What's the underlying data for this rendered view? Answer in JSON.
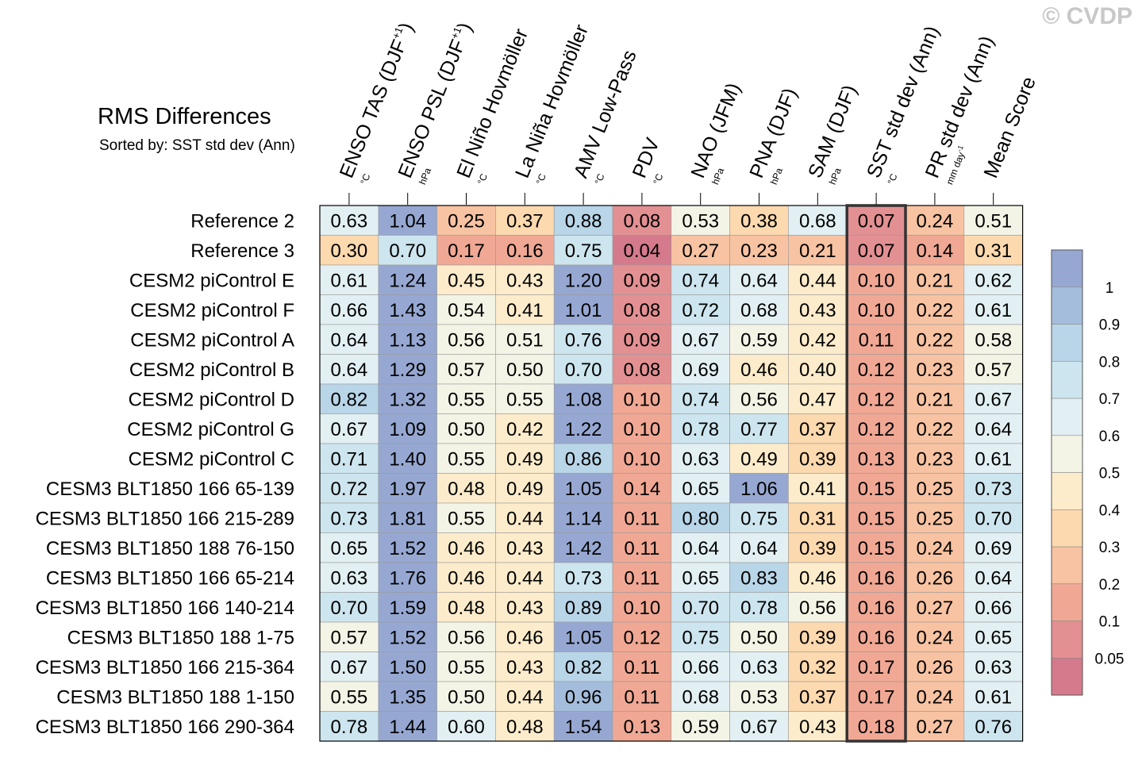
{
  "watermark": "© CVDP",
  "chart_data": {
    "type": "table",
    "title": "RMS Differences",
    "subtitle": "Sorted by: SST std dev (Ann)",
    "columns": [
      {
        "name": "ENSO TAS (DJF",
        "sup": "+1",
        "close": ")",
        "unit": "°C"
      },
      {
        "name": "ENSO PSL (DJF",
        "sup": "+1",
        "close": ")",
        "unit": "hPa"
      },
      {
        "name": "El Niño Hovmöller",
        "sup": "",
        "close": "",
        "unit": "°C"
      },
      {
        "name": "La Niña Hovmöller",
        "sup": "",
        "close": "",
        "unit": "°C"
      },
      {
        "name": "AMV Low-Pass",
        "sup": "",
        "close": "",
        "unit": "°C"
      },
      {
        "name": "PDV",
        "sup": "",
        "close": "",
        "unit": "°C"
      },
      {
        "name": "NAO (JFM)",
        "sup": "",
        "close": "",
        "unit": "hPa"
      },
      {
        "name": "PNA (DJF)",
        "sup": "",
        "close": "",
        "unit": "hPa"
      },
      {
        "name": "SAM (DJF)",
        "sup": "",
        "close": "",
        "unit": "hPa"
      },
      {
        "name": "SST std dev (Ann)",
        "sup": "",
        "close": "",
        "unit": "°C"
      },
      {
        "name": "PR std dev (Ann)",
        "sup": "",
        "close": "",
        "unit": "mm day",
        "unit_sup": "-1"
      },
      {
        "name": "Mean Score",
        "sup": "",
        "close": "",
        "unit": ""
      }
    ],
    "rows": [
      {
        "label": "Reference 2",
        "values": [
          "0.63",
          "1.04",
          "0.25",
          "0.37",
          "0.88",
          "0.08",
          "0.53",
          "0.38",
          "0.68",
          "0.07",
          "0.24",
          "0.51"
        ]
      },
      {
        "label": "Reference 3",
        "values": [
          "0.30",
          "0.70",
          "0.17",
          "0.16",
          "0.75",
          "0.04",
          "0.27",
          "0.23",
          "0.21",
          "0.07",
          "0.14",
          "0.31"
        ]
      },
      {
        "label": "CESM2 piControl E",
        "values": [
          "0.61",
          "1.24",
          "0.45",
          "0.43",
          "1.20",
          "0.09",
          "0.74",
          "0.64",
          "0.44",
          "0.10",
          "0.21",
          "0.62"
        ]
      },
      {
        "label": "CESM2 piControl F",
        "values": [
          "0.66",
          "1.43",
          "0.54",
          "0.41",
          "1.01",
          "0.08",
          "0.72",
          "0.68",
          "0.43",
          "0.10",
          "0.22",
          "0.61"
        ]
      },
      {
        "label": "CESM2 piControl A",
        "values": [
          "0.64",
          "1.13",
          "0.56",
          "0.51",
          "0.76",
          "0.09",
          "0.67",
          "0.59",
          "0.42",
          "0.11",
          "0.22",
          "0.58"
        ]
      },
      {
        "label": "CESM2 piControl B",
        "values": [
          "0.64",
          "1.29",
          "0.57",
          "0.50",
          "0.70",
          "0.08",
          "0.69",
          "0.46",
          "0.40",
          "0.12",
          "0.23",
          "0.57"
        ]
      },
      {
        "label": "CESM2 piControl D",
        "values": [
          "0.82",
          "1.32",
          "0.55",
          "0.55",
          "1.08",
          "0.10",
          "0.74",
          "0.56",
          "0.47",
          "0.12",
          "0.21",
          "0.67"
        ]
      },
      {
        "label": "CESM2 piControl G",
        "values": [
          "0.67",
          "1.09",
          "0.50",
          "0.42",
          "1.22",
          "0.10",
          "0.78",
          "0.77",
          "0.37",
          "0.12",
          "0.22",
          "0.64"
        ]
      },
      {
        "label": "CESM2 piControl C",
        "values": [
          "0.71",
          "1.40",
          "0.55",
          "0.49",
          "0.86",
          "0.10",
          "0.63",
          "0.49",
          "0.39",
          "0.13",
          "0.23",
          "0.61"
        ]
      },
      {
        "label": "CESM3 BLT1850 166 65-139",
        "values": [
          "0.72",
          "1.97",
          "0.48",
          "0.49",
          "1.05",
          "0.14",
          "0.65",
          "1.06",
          "0.41",
          "0.15",
          "0.25",
          "0.73"
        ]
      },
      {
        "label": "CESM3 BLT1850 166 215-289",
        "values": [
          "0.73",
          "1.81",
          "0.55",
          "0.44",
          "1.14",
          "0.11",
          "0.80",
          "0.75",
          "0.31",
          "0.15",
          "0.25",
          "0.70"
        ]
      },
      {
        "label": "CESM3 BLT1850 188 76-150",
        "values": [
          "0.65",
          "1.52",
          "0.46",
          "0.43",
          "1.42",
          "0.11",
          "0.64",
          "0.64",
          "0.39",
          "0.15",
          "0.24",
          "0.69"
        ]
      },
      {
        "label": "CESM3 BLT1850 166 65-214",
        "values": [
          "0.63",
          "1.76",
          "0.46",
          "0.44",
          "0.73",
          "0.11",
          "0.65",
          "0.83",
          "0.46",
          "0.16",
          "0.26",
          "0.64"
        ]
      },
      {
        "label": "CESM3 BLT1850 166 140-214",
        "values": [
          "0.70",
          "1.59",
          "0.48",
          "0.43",
          "0.89",
          "0.10",
          "0.70",
          "0.78",
          "0.56",
          "0.16",
          "0.27",
          "0.66"
        ]
      },
      {
        "label": "CESM3 BLT1850 188 1-75",
        "values": [
          "0.57",
          "1.52",
          "0.56",
          "0.46",
          "1.05",
          "0.12",
          "0.75",
          "0.50",
          "0.39",
          "0.16",
          "0.24",
          "0.65"
        ]
      },
      {
        "label": "CESM3 BLT1850 166 215-364",
        "values": [
          "0.67",
          "1.50",
          "0.55",
          "0.43",
          "0.82",
          "0.11",
          "0.66",
          "0.63",
          "0.32",
          "0.17",
          "0.26",
          "0.63"
        ]
      },
      {
        "label": "CESM3 BLT1850 188 1-150",
        "values": [
          "0.55",
          "1.35",
          "0.50",
          "0.44",
          "0.96",
          "0.11",
          "0.68",
          "0.53",
          "0.37",
          "0.17",
          "0.24",
          "0.61"
        ]
      },
      {
        "label": "CESM3 BLT1850 166 290-364",
        "values": [
          "0.78",
          "1.44",
          "0.60",
          "0.48",
          "1.54",
          "0.13",
          "0.59",
          "0.67",
          "0.43",
          "0.18",
          "0.27",
          "0.76"
        ]
      }
    ],
    "sorted_column": 9,
    "colorbar": {
      "levels": [
        0.05,
        0.1,
        0.2,
        0.3,
        0.4,
        0.5,
        0.6,
        0.7,
        0.8,
        0.9,
        1
      ],
      "tick_labels": [
        "0.05",
        "0.1",
        "0.2",
        "0.3",
        "0.4",
        "0.5",
        "0.6",
        "0.7",
        "0.8",
        "0.9",
        "1"
      ],
      "colors": [
        "#d47a8c",
        "#e39093",
        "#f0a894",
        "#f8c3a2",
        "#fcd9ae",
        "#fdeccb",
        "#f4f4e6",
        "#e2f0f4",
        "#cde5ee",
        "#b9d5e8",
        "#a5bddc",
        "#96a8d2"
      ]
    }
  }
}
